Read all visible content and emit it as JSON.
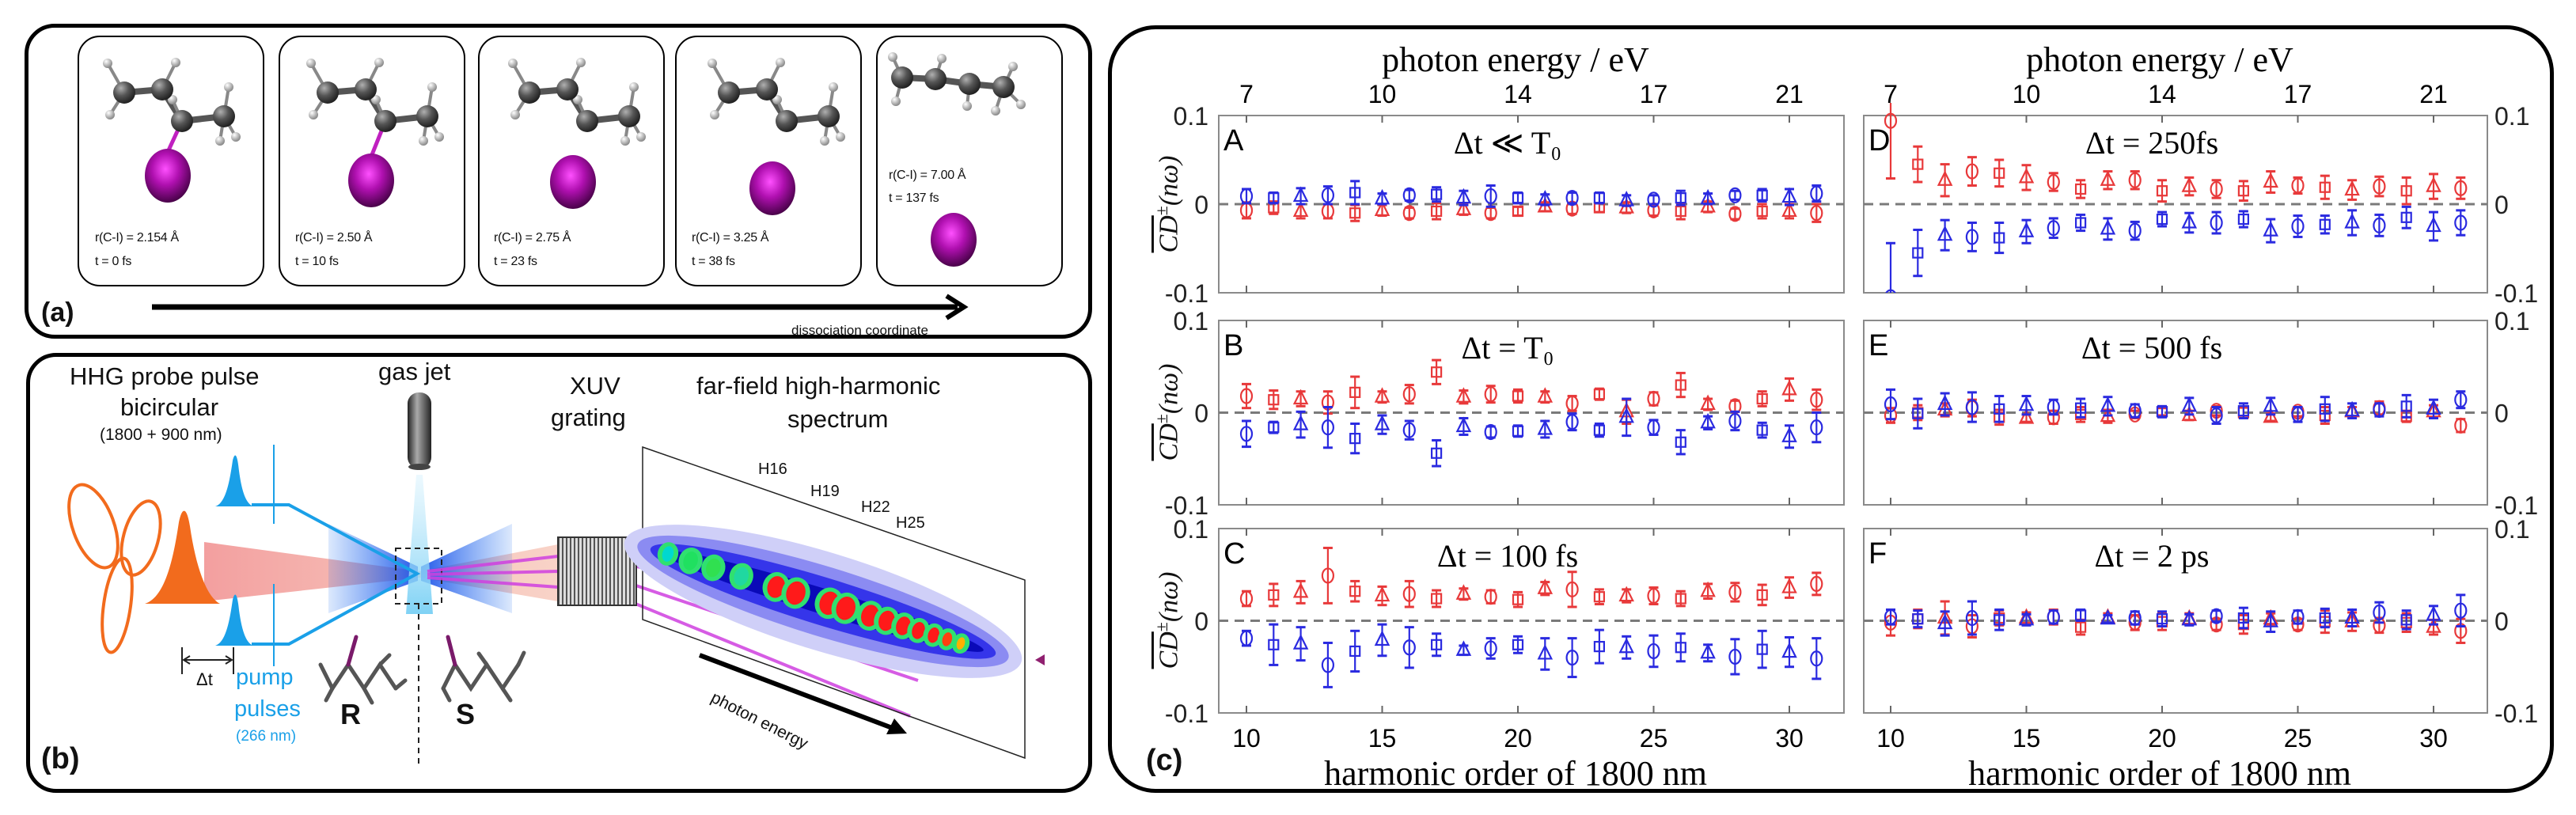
{
  "panel_a": {
    "label": "(a)",
    "frames": [
      {
        "r": "r(C-I) = 2.154 Å",
        "t": "t = 0 fs"
      },
      {
        "r": "r(C-I) = 2.50 Å",
        "t": "t = 10 fs"
      },
      {
        "r": "r(C-I) = 2.75 Å",
        "t": "t = 23 fs"
      },
      {
        "r": "r(C-I) = 3.25 Å",
        "t": "t = 38 fs"
      },
      {
        "r": "r(C-I) = 7.00 Å",
        "t": "t = 137 fs"
      }
    ],
    "axis_label": "dissociation coordinate"
  },
  "panel_b": {
    "label": "(b)",
    "probe": {
      "line1": "HHG probe pulse",
      "line2": "bicircular",
      "line3": "(1800 + 900 nm)"
    },
    "gas_jet": "gas jet",
    "grating": {
      "line1": "XUV",
      "line2": "grating"
    },
    "spectrum": {
      "line1": "far-field high-harmonic",
      "line2": "spectrum"
    },
    "harmonics": [
      "H16",
      "H19",
      "H22",
      "H25"
    ],
    "delay": "Δt",
    "pump": {
      "line1": "pump",
      "line2": "pulses",
      "line3": "(266 nm)"
    },
    "enantiomers": [
      "R",
      "S"
    ],
    "photon_energy": "photon energy",
    "colors": {
      "probe": "#f26b1d",
      "pump": "#1aa0e8",
      "xuv": "#d040e0"
    }
  },
  "panel_c": {
    "label": "(c)",
    "top_xlabel": "photon energy / eV",
    "top_xticks": [
      "7",
      "10",
      "14",
      "17",
      "21"
    ],
    "xlabel": "harmonic order of 1800 nm",
    "xticks": [
      "10",
      "15",
      "20",
      "25",
      "30"
    ],
    "yticks": [
      "0.1",
      "0",
      "-0.1"
    ],
    "ylabel": {
      "main": "CD",
      "sup": "±",
      "arg": "(nω)"
    }
  },
  "chart_data": [
    {
      "type": "scatter",
      "panel": "A",
      "title": "Δt ≪ T₀",
      "ylim": [
        -0.1,
        0.1
      ],
      "x": [
        10,
        11,
        12,
        13,
        14,
        15,
        16,
        17,
        18,
        19,
        20,
        21,
        22,
        23,
        24,
        25,
        26,
        27,
        28,
        29,
        30,
        31
      ],
      "marker_cycle": [
        "circle",
        "square",
        "triangle"
      ],
      "series": [
        {
          "name": "red",
          "color": "#e8393a",
          "values": [
            -0.007,
            -0.004,
            -0.008,
            -0.008,
            -0.01,
            -0.007,
            -0.01,
            -0.008,
            -0.006,
            -0.01,
            -0.008,
            -0.003,
            -0.005,
            -0.004,
            -0.004,
            -0.007,
            -0.008,
            -0.003,
            -0.011,
            -0.008,
            -0.008,
            -0.01
          ],
          "errors": [
            0.009,
            0.007,
            0.008,
            0.008,
            0.009,
            0.006,
            0.006,
            0.009,
            0.006,
            0.006,
            0.005,
            0.005,
            0.006,
            0.005,
            0.006,
            0.006,
            0.009,
            0.006,
            0.006,
            0.008,
            0.008,
            0.01
          ]
        },
        {
          "name": "blue",
          "color": "#2a2ae0",
          "values": [
            0.009,
            0.007,
            0.009,
            0.01,
            0.013,
            0.006,
            0.01,
            0.011,
            0.007,
            0.009,
            0.007,
            0.005,
            0.007,
            0.007,
            0.004,
            0.005,
            0.007,
            0.006,
            0.01,
            0.01,
            0.008,
            0.012
          ],
          "errors": [
            0.008,
            0.006,
            0.009,
            0.01,
            0.013,
            0.006,
            0.006,
            0.008,
            0.008,
            0.012,
            0.006,
            0.006,
            0.006,
            0.006,
            0.006,
            0.005,
            0.008,
            0.006,
            0.005,
            0.007,
            0.009,
            0.009
          ]
        }
      ]
    },
    {
      "type": "scatter",
      "panel": "B",
      "title": "Δt = T₀",
      "ylim": [
        -0.1,
        0.1
      ],
      "x": [
        10,
        11,
        12,
        13,
        14,
        15,
        16,
        17,
        18,
        19,
        20,
        21,
        22,
        23,
        24,
        25,
        26,
        27,
        28,
        29,
        30,
        31
      ],
      "marker_cycle": [
        "circle",
        "square",
        "triangle"
      ],
      "series": [
        {
          "name": "red",
          "color": "#e8393a",
          "values": [
            0.018,
            0.014,
            0.015,
            0.011,
            0.022,
            0.017,
            0.02,
            0.044,
            0.017,
            0.02,
            0.018,
            0.017,
            0.01,
            0.02,
            0.001,
            0.015,
            0.03,
            0.009,
            0.007,
            0.015,
            0.025,
            0.014
          ],
          "errors": [
            0.013,
            0.01,
            0.008,
            0.012,
            0.017,
            0.006,
            0.01,
            0.013,
            0.007,
            0.009,
            0.007,
            0.006,
            0.008,
            0.006,
            0.013,
            0.007,
            0.013,
            0.006,
            0.006,
            0.008,
            0.012,
            0.011
          ]
        },
        {
          "name": "blue",
          "color": "#2a2ae0",
          "values": [
            -0.023,
            -0.016,
            -0.013,
            -0.016,
            -0.028,
            -0.013,
            -0.019,
            -0.044,
            -0.015,
            -0.021,
            -0.02,
            -0.018,
            -0.01,
            -0.019,
            -0.005,
            -0.016,
            -0.032,
            -0.011,
            -0.009,
            -0.019,
            -0.026,
            -0.016
          ],
          "errors": [
            0.014,
            0.006,
            0.014,
            0.022,
            0.016,
            0.01,
            0.01,
            0.014,
            0.009,
            0.006,
            0.006,
            0.009,
            0.009,
            0.007,
            0.02,
            0.008,
            0.013,
            0.007,
            0.01,
            0.008,
            0.012,
            0.016
          ]
        }
      ]
    },
    {
      "type": "scatter",
      "panel": "C",
      "title": "Δt = 100 fs",
      "ylim": [
        -0.1,
        0.1
      ],
      "x": [
        10,
        11,
        12,
        13,
        14,
        15,
        16,
        17,
        18,
        19,
        20,
        21,
        22,
        23,
        24,
        25,
        26,
        27,
        28,
        29,
        30,
        31
      ],
      "marker_cycle": [
        "circle",
        "square",
        "triangle"
      ],
      "series": [
        {
          "name": "red",
          "color": "#e8393a",
          "values": [
            0.024,
            0.028,
            0.031,
            0.049,
            0.032,
            0.027,
            0.029,
            0.024,
            0.029,
            0.026,
            0.023,
            0.035,
            0.034,
            0.026,
            0.027,
            0.027,
            0.024,
            0.032,
            0.031,
            0.028,
            0.036,
            0.04
          ],
          "errors": [
            0.008,
            0.012,
            0.012,
            0.03,
            0.011,
            0.01,
            0.014,
            0.009,
            0.006,
            0.007,
            0.008,
            0.007,
            0.019,
            0.008,
            0.007,
            0.009,
            0.008,
            0.008,
            0.01,
            0.011,
            0.011,
            0.012
          ]
        },
        {
          "name": "blue",
          "color": "#2a2ae0",
          "values": [
            -0.019,
            -0.026,
            -0.025,
            -0.048,
            -0.033,
            -0.021,
            -0.029,
            -0.026,
            -0.032,
            -0.03,
            -0.026,
            -0.036,
            -0.04,
            -0.028,
            -0.029,
            -0.033,
            -0.029,
            -0.035,
            -0.039,
            -0.031,
            -0.034,
            -0.041
          ],
          "errors": [
            0.008,
            0.022,
            0.018,
            0.024,
            0.022,
            0.017,
            0.022,
            0.012,
            0.005,
            0.011,
            0.009,
            0.017,
            0.021,
            0.018,
            0.012,
            0.017,
            0.015,
            0.009,
            0.019,
            0.02,
            0.016,
            0.022
          ]
        }
      ]
    },
    {
      "type": "scatter",
      "panel": "D",
      "title": "Δt = 250fs",
      "ylim": [
        -0.1,
        0.1
      ],
      "x": [
        10,
        11,
        12,
        13,
        14,
        15,
        16,
        17,
        18,
        19,
        20,
        21,
        22,
        23,
        24,
        25,
        26,
        27,
        28,
        29,
        30,
        31
      ],
      "marker_cycle": [
        "circle",
        "square",
        "triangle"
      ],
      "series": [
        {
          "name": "red",
          "color": "#e8393a",
          "values": [
            0.094,
            0.045,
            0.027,
            0.037,
            0.035,
            0.03,
            0.025,
            0.017,
            0.027,
            0.027,
            0.015,
            0.02,
            0.017,
            0.015,
            0.025,
            0.021,
            0.019,
            0.016,
            0.02,
            0.015,
            0.02,
            0.018
          ],
          "errors": [
            0.065,
            0.02,
            0.018,
            0.016,
            0.015,
            0.014,
            0.01,
            0.01,
            0.01,
            0.01,
            0.012,
            0.01,
            0.01,
            0.011,
            0.012,
            0.009,
            0.013,
            0.011,
            0.011,
            0.015,
            0.014,
            0.012
          ]
        },
        {
          "name": "blue",
          "color": "#2a2ae0",
          "values": [
            -0.105,
            -0.055,
            -0.035,
            -0.037,
            -0.038,
            -0.031,
            -0.027,
            -0.021,
            -0.028,
            -0.03,
            -0.017,
            -0.021,
            -0.021,
            -0.017,
            -0.03,
            -0.025,
            -0.023,
            -0.021,
            -0.024,
            -0.015,
            -0.025,
            -0.021
          ],
          "errors": [
            0.061,
            0.026,
            0.017,
            0.016,
            0.017,
            0.013,
            0.011,
            0.009,
            0.012,
            0.01,
            0.008,
            0.011,
            0.012,
            0.009,
            0.013,
            0.012,
            0.01,
            0.014,
            0.012,
            0.012,
            0.016,
            0.014
          ]
        }
      ]
    },
    {
      "type": "scatter",
      "panel": "E",
      "title": "Δt = 500 fs",
      "ylim": [
        -0.1,
        0.1
      ],
      "x": [
        10,
        11,
        12,
        13,
        14,
        15,
        16,
        17,
        18,
        19,
        20,
        21,
        22,
        23,
        24,
        25,
        26,
        27,
        28,
        29,
        30,
        31
      ],
      "marker_cycle": [
        "circle",
        "square",
        "triangle"
      ],
      "series": [
        {
          "name": "red",
          "color": "#e8393a",
          "values": [
            -0.003,
            0.0,
            0.003,
            0.005,
            -0.005,
            -0.006,
            -0.005,
            -0.002,
            -0.004,
            -0.002,
            0.001,
            -0.003,
            0.002,
            0.0,
            -0.005,
            0.001,
            -0.003,
            0.001,
            0.005,
            -0.004,
            0.001,
            -0.014
          ],
          "errors": [
            0.008,
            0.008,
            0.007,
            0.009,
            0.008,
            0.004,
            0.007,
            0.008,
            0.007,
            0.004,
            0.004,
            0.005,
            0.005,
            0.006,
            0.004,
            0.005,
            0.009,
            0.005,
            0.007,
            0.006,
            0.007,
            0.007
          ]
        },
        {
          "name": "blue",
          "color": "#2a2ae0",
          "values": [
            0.009,
            -0.001,
            0.009,
            0.006,
            0.004,
            0.008,
            0.006,
            0.005,
            0.007,
            0.002,
            0.001,
            0.007,
            -0.003,
            0.002,
            0.007,
            -0.002,
            0.004,
            0.002,
            0.003,
            0.007,
            0.004,
            0.014
          ],
          "errors": [
            0.016,
            0.016,
            0.012,
            0.016,
            0.014,
            0.01,
            0.008,
            0.01,
            0.01,
            0.007,
            0.006,
            0.009,
            0.009,
            0.008,
            0.009,
            0.008,
            0.013,
            0.008,
            0.007,
            0.012,
            0.01,
            0.009
          ]
        }
      ]
    },
    {
      "type": "scatter",
      "panel": "F",
      "title": "Δt = 2 ps",
      "ylim": [
        -0.1,
        0.1
      ],
      "x": [
        10,
        11,
        12,
        13,
        14,
        15,
        16,
        17,
        18,
        19,
        20,
        21,
        22,
        23,
        24,
        25,
        26,
        27,
        28,
        29,
        30,
        31
      ],
      "marker_cycle": [
        "circle",
        "square",
        "triangle"
      ],
      "series": [
        {
          "name": "red",
          "color": "#e8393a",
          "values": [
            -0.002,
            0.002,
            0.003,
            -0.006,
            0.003,
            0.003,
            0.004,
            -0.007,
            0.003,
            -0.002,
            -0.001,
            0.002,
            -0.004,
            -0.004,
            0.002,
            -0.004,
            -0.001,
            -0.001,
            -0.005,
            -0.002,
            -0.007,
            -0.011
          ],
          "errors": [
            0.014,
            0.01,
            0.018,
            0.012,
            0.008,
            0.006,
            0.008,
            0.008,
            0.005,
            0.008,
            0.009,
            0.006,
            0.006,
            0.01,
            0.006,
            0.006,
            0.012,
            0.01,
            0.008,
            0.01,
            0.008,
            0.013
          ]
        },
        {
          "name": "blue",
          "color": "#2a2ae0",
          "values": [
            0.004,
            0.002,
            -0.003,
            0.003,
            0.001,
            0.001,
            0.004,
            0.006,
            0.002,
            0.003,
            0.002,
            0.001,
            0.005,
            0.003,
            -0.001,
            0.004,
            0.003,
            0.003,
            0.009,
            0.001,
            0.006,
            0.011
          ],
          "errors": [
            0.008,
            0.009,
            0.013,
            0.018,
            0.011,
            0.006,
            0.007,
            0.006,
            0.004,
            0.007,
            0.008,
            0.006,
            0.006,
            0.011,
            0.011,
            0.007,
            0.01,
            0.009,
            0.011,
            0.01,
            0.01,
            0.017
          ]
        }
      ]
    }
  ]
}
